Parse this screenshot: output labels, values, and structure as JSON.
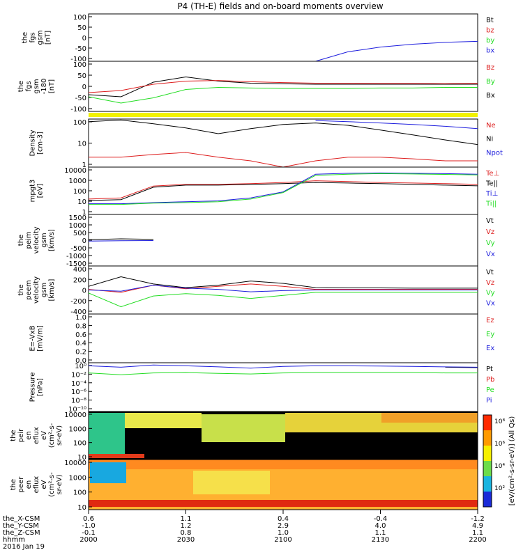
{
  "title": "P4 (TH-E) fields and on-board moments overview",
  "date_label": "2016 Jan 19",
  "colors": {
    "black": "#000000",
    "red": "#dd1c1c",
    "green": "#22dd22",
    "blue": "#1c1cdd",
    "yellow": "#f2f200"
  },
  "time_axis": {
    "start_hhmm": "2000",
    "end_hhmm": "2200",
    "ticks": [
      "2000",
      "2030",
      "2100",
      "2130",
      "2200"
    ],
    "row_labels": [
      "the_X-CSM",
      "the_Y-CSM",
      "the_Z-CSM",
      "hhmm"
    ],
    "rows": [
      [
        "0.6",
        "1.1",
        "0.4",
        "-0.4",
        "-1.2"
      ],
      [
        "-1.0",
        "1.2",
        "2.9",
        "4.0",
        "4.9"
      ],
      [
        "-0.1",
        "0.8",
        "1.0",
        "1.1",
        "1.1"
      ],
      [
        "2000",
        "2030",
        "2100",
        "2130",
        "2200"
      ]
    ]
  },
  "panels": [
    {
      "id": "fgs",
      "ylabel": [
        "the",
        "fgs",
        "gsm",
        "[nT]"
      ],
      "yticks": [
        "100",
        "50",
        "0",
        "-50",
        "-100"
      ],
      "legend": [
        {
          "text": "Bt",
          "color": "black"
        },
        {
          "text": "bz",
          "color": "red"
        },
        {
          "text": "by",
          "color": "green"
        },
        {
          "text": "bx",
          "color": "blue"
        }
      ]
    },
    {
      "id": "fgs-hi",
      "ylabel": [
        "the",
        "fgs",
        "gsm",
        "-180",
        "[nT]"
      ],
      "yticks": [
        "100",
        "50",
        "0",
        "-50",
        "-100"
      ],
      "legend": [
        {
          "text": "Bz",
          "color": "red"
        },
        {
          "text": "By",
          "color": "green"
        },
        {
          "text": "Bx",
          "color": "black"
        }
      ]
    },
    {
      "id": "density",
      "ylabel": [
        "Density",
        "[cm-3]"
      ],
      "yticks": [
        "100",
        "10",
        "1"
      ],
      "legend": [
        {
          "text": "Ne",
          "color": "red"
        },
        {
          "text": "Ni",
          "color": "black"
        },
        {
          "text": "Npot",
          "color": "blue"
        }
      ]
    },
    {
      "id": "temperature",
      "ylabel": [
        "mpgt3",
        "[eV]"
      ],
      "yticks": [
        "10000",
        "1000",
        "100",
        "10",
        "1"
      ],
      "legend": [
        {
          "text": "Te⊥",
          "color": "red"
        },
        {
          "text": "Te||",
          "color": "black"
        },
        {
          "text": "Ti⊥",
          "color": "blue"
        },
        {
          "text": "Ti||",
          "color": "green"
        }
      ]
    },
    {
      "id": "peim-velocity",
      "ylabel": [
        "the",
        "peim",
        "velocity",
        "gsm",
        "[km/s]"
      ],
      "yticks": [
        "1500",
        "1000",
        "500",
        "0",
        "-500",
        "-1000",
        "-1500"
      ],
      "legend": [
        {
          "text": "Vt",
          "color": "black"
        },
        {
          "text": "Vz",
          "color": "red"
        },
        {
          "text": "Vy",
          "color": "green"
        },
        {
          "text": "Vx",
          "color": "blue"
        }
      ]
    },
    {
      "id": "peem-velocity",
      "ylabel": [
        "the",
        "peem",
        "velocity",
        "gsm",
        "[km/s]"
      ],
      "yticks": [
        "400",
        "200",
        "0",
        "-200",
        "-400"
      ],
      "legend": [
        {
          "text": "Vt",
          "color": "black"
        },
        {
          "text": "Vz",
          "color": "red"
        },
        {
          "text": "Vy",
          "color": "green"
        },
        {
          "text": "Vx",
          "color": "blue"
        }
      ]
    },
    {
      "id": "efield",
      "ylabel": [
        "E=-VxB",
        "[mV/m]"
      ],
      "yticks": [
        "1.0",
        "0.8",
        "0.6",
        "0.4",
        "0.2",
        "0.0"
      ],
      "legend": [
        {
          "text": "Ez",
          "color": "red"
        },
        {
          "text": "Ey",
          "color": "green"
        },
        {
          "text": "Ex",
          "color": "blue"
        }
      ]
    },
    {
      "id": "pressure",
      "ylabel": [
        "Pressure",
        "[nPa]"
      ],
      "yticks": [
        "10⁰",
        "10⁻²",
        "10⁻⁴",
        "10⁻⁶",
        "10⁻⁸",
        "10⁻¹⁰"
      ],
      "legend": [
        {
          "text": "Pt",
          "color": "black"
        },
        {
          "text": "Pb",
          "color": "red"
        },
        {
          "text": "Pe",
          "color": "green"
        },
        {
          "text": "Pi",
          "color": "blue"
        }
      ]
    },
    {
      "id": "peir-spectrogram",
      "ylabel": [
        "the",
        "peir",
        "en",
        "eflux",
        "eV",
        "(cm²-s-",
        "sr-eV)"
      ],
      "yticks": [
        "10000",
        "1000",
        "100",
        "10"
      ]
    },
    {
      "id": "peer-spectrogram",
      "ylabel": [
        "the",
        "peer",
        "en",
        "eflux",
        "eV",
        "(cm²-s-",
        "sr-eV)"
      ],
      "yticks": [
        "10000",
        "1000",
        "100",
        "10"
      ]
    }
  ],
  "colorbar": {
    "label": "[eV/(cm²-s-sr-eV)] (All Qs)",
    "ticks": [
      "10⁸",
      "10⁶",
      "10⁴",
      "10²"
    ]
  },
  "chart_data": {
    "type": "line",
    "title": "P4 (TH-E) fields and on-board moments overview",
    "x_unit": "hhmm",
    "x_range": [
      "2000",
      "2200"
    ],
    "x": [
      "2000",
      "2010",
      "2020",
      "2030",
      "2040",
      "2050",
      "2100",
      "2110",
      "2120",
      "2130",
      "2140",
      "2150",
      "2200"
    ],
    "panels": [
      {
        "name": "fgs",
        "ylim": [
          -100,
          100
        ],
        "series": [
          {
            "name": "bx",
            "color": "blue",
            "values": [
              null,
              null,
              null,
              null,
              null,
              null,
              null,
              -100,
              -60,
              -40,
              -28,
              -20,
              -16
            ]
          }
        ]
      },
      {
        "name": "fgs-180",
        "ylim": [
          -120,
          120
        ],
        "series": [
          {
            "name": "Bx",
            "color": "black",
            "values": [
              -40,
              -50,
              20,
              45,
              25,
              15,
              12,
              10,
              10,
              10,
              10,
              10,
              10
            ]
          },
          {
            "name": "Bz",
            "color": "red",
            "values": [
              -30,
              -20,
              10,
              25,
              28,
              22,
              18,
              15,
              15,
              14,
              14,
              13,
              15
            ]
          },
          {
            "name": "By",
            "color": "green",
            "values": [
              -50,
              -80,
              -55,
              -15,
              -5,
              -8,
              -10,
              -10,
              -10,
              -8,
              -8,
              -5,
              -5
            ]
          }
        ]
      },
      {
        "name": "Density",
        "ylim": [
          1,
          200
        ],
        "log": true,
        "series": [
          {
            "name": "Ni",
            "color": "black",
            "values": [
              150,
              180,
              120,
              75,
              40,
              70,
              110,
              130,
              100,
              60,
              35,
              20,
              12
            ]
          },
          {
            "name": "Ne",
            "color": "red",
            "values": [
              3,
              3,
              4,
              5,
              3,
              2,
              1,
              2,
              3,
              3,
              2.5,
              2,
              2
            ]
          },
          {
            "name": "Npot",
            "color": "blue",
            "values": [
              null,
              null,
              null,
              null,
              null,
              null,
              null,
              170,
              150,
              130,
              110,
              90,
              70
            ]
          }
        ]
      },
      {
        "name": "mpgt3",
        "ylim": [
          1,
          10000
        ],
        "log": true,
        "series": [
          {
            "name": "Te⊥",
            "color": "red",
            "values": [
              20,
              25,
              250,
              350,
              350,
              400,
              500,
              700,
              600,
              500,
              450,
              400,
              350
            ]
          },
          {
            "name": "Te||",
            "color": "black",
            "values": [
              15,
              18,
              200,
              300,
              300,
              350,
              400,
              500,
              450,
              400,
              350,
              300,
              260
            ]
          },
          {
            "name": "Ti⊥",
            "color": "blue",
            "values": [
              8,
              8,
              10,
              12,
              14,
              25,
              80,
              2500,
              3000,
              3200,
              3000,
              2800,
              2500
            ]
          },
          {
            "name": "Ti||",
            "color": "green",
            "values": [
              7,
              7,
              9,
              10,
              12,
              20,
              70,
              2000,
              2500,
              2800,
              2600,
              2400,
              2200
            ]
          }
        ]
      },
      {
        "name": "peim velocity",
        "ylim": [
          -1500,
          1500
        ],
        "series": [
          {
            "name": "Vt",
            "color": "black",
            "values": [
              30,
              80,
              50,
              null,
              null,
              null,
              null,
              null,
              null,
              null,
              null,
              null,
              null
            ]
          },
          {
            "name": "Vx",
            "color": "blue",
            "values": [
              -50,
              -30,
              -20,
              null,
              null,
              null,
              null,
              null,
              null,
              null,
              null,
              null,
              null
            ]
          }
        ]
      },
      {
        "name": "peem velocity",
        "ylim": [
          -400,
          400
        ],
        "series": [
          {
            "name": "Vt",
            "color": "black",
            "values": [
              60,
              220,
              100,
              40,
              80,
              150,
              110,
              40,
              35,
              35,
              30,
              30,
              30
            ]
          },
          {
            "name": "Vz",
            "color": "red",
            "values": [
              10,
              -40,
              80,
              20,
              60,
              100,
              60,
              10,
              10,
              10,
              10,
              10,
              10
            ]
          },
          {
            "name": "Vy",
            "color": "green",
            "values": [
              -50,
              -280,
              -100,
              -60,
              -90,
              -140,
              -90,
              -40,
              -40,
              -40,
              -40,
              -40,
              -40
            ]
          },
          {
            "name": "Vx",
            "color": "blue",
            "values": [
              0,
              -20,
              80,
              30,
              10,
              -30,
              -10,
              0,
              0,
              0,
              0,
              0,
              0
            ]
          }
        ]
      },
      {
        "name": "E=-VxB",
        "ylim": [
          0,
          1
        ],
        "series": [
          {
            "name": "Ez",
            "color": "red",
            "values": [
              null,
              null,
              null,
              null,
              null,
              null,
              null,
              null,
              null,
              null,
              null,
              null,
              null
            ]
          }
        ]
      },
      {
        "name": "Pressure",
        "ylim": [
          1e-10,
          10
        ],
        "log": true,
        "series": [
          {
            "name": "Pt",
            "color": "black",
            "values": [
              null,
              null,
              null,
              null,
              null,
              null,
              null,
              null,
              null,
              null,
              null,
              1,
              0.8
            ]
          },
          {
            "name": "Pi",
            "color": "blue",
            "values": [
              2,
              1,
              3,
              2,
              1.2,
              0.6,
              1.5,
              2,
              2,
              1.8,
              1.5,
              1.2,
              1
            ]
          },
          {
            "name": "Pe",
            "color": "green",
            "values": [
              0.05,
              0.02,
              0.05,
              0.06,
              0.04,
              0.03,
              0.05,
              0.06,
              0.06,
              0.06,
              0.06,
              0.05,
              0.05
            ]
          }
        ]
      }
    ]
  }
}
